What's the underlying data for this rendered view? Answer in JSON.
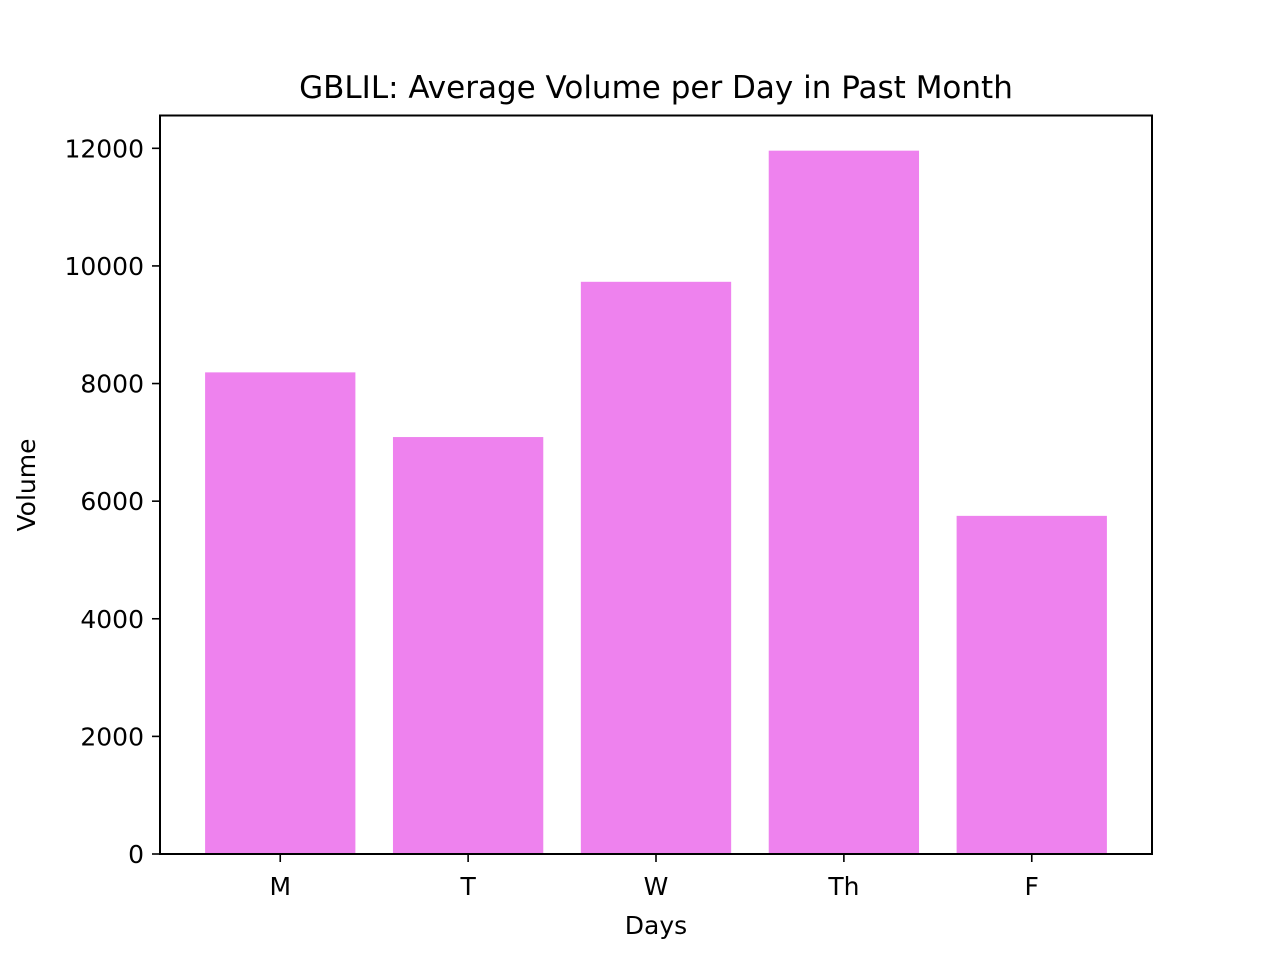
{
  "chart_data": {
    "type": "bar",
    "title": "GBLIL: Average Volume per Day in Past Month",
    "xlabel": "Days",
    "ylabel": "Volume",
    "categories": [
      "M",
      "T",
      "W",
      "Th",
      "F"
    ],
    "values": [
      8190,
      7090,
      9730,
      11960,
      5750
    ],
    "ylim": [
      0,
      12558
    ],
    "yticks": [
      0,
      2000,
      4000,
      6000,
      8000,
      10000,
      12000
    ],
    "bar_color": "#ee82ee",
    "grid": false,
    "legend": "none"
  }
}
